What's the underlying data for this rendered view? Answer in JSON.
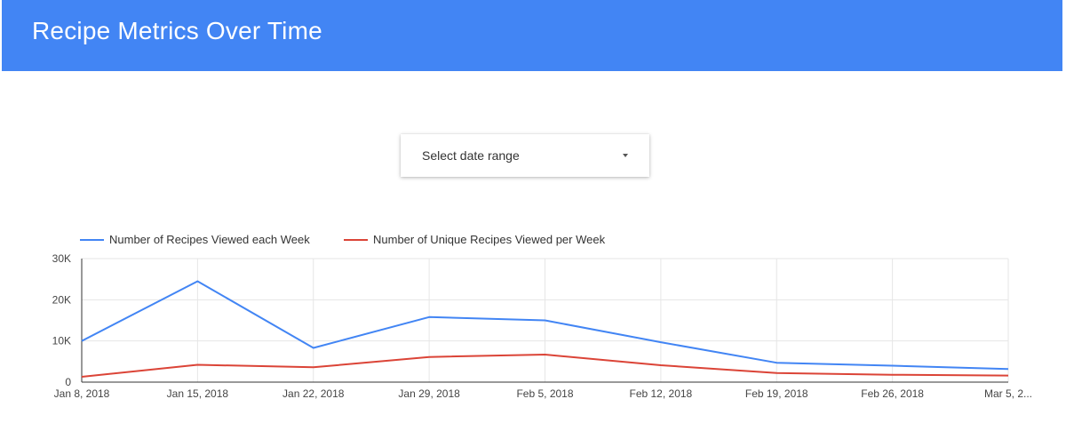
{
  "header": {
    "title": "Recipe Metrics Over Time",
    "background_color": "#4285f4"
  },
  "date_range": {
    "label": "Select date range",
    "icon": "caret-down-icon"
  },
  "chart_data": {
    "type": "line",
    "x": [
      "Jan 8, 2018",
      "Jan 15, 2018",
      "Jan 22, 2018",
      "Jan 29, 2018",
      "Feb 5, 2018",
      "Feb 12, 2018",
      "Feb 19, 2018",
      "Feb 26, 2018",
      "Mar 5, 2..."
    ],
    "series": [
      {
        "name": "Number of Recipes Viewed each Week",
        "color": "#4285f4",
        "values": [
          10000,
          24500,
          8300,
          15800,
          15000,
          9700,
          4700,
          4000,
          3200
        ]
      },
      {
        "name": "Number of Unique Recipes Viewed per Week",
        "color": "#db4437",
        "values": [
          1300,
          4200,
          3600,
          6100,
          6700,
          4100,
          2200,
          1800,
          1600
        ]
      }
    ],
    "ylim": [
      0,
      30000
    ],
    "yticks": [
      0,
      10000,
      20000,
      30000
    ],
    "ytick_labels": [
      "0",
      "10K",
      "20K",
      "30K"
    ],
    "grid": true,
    "legend_position": "top-left"
  }
}
